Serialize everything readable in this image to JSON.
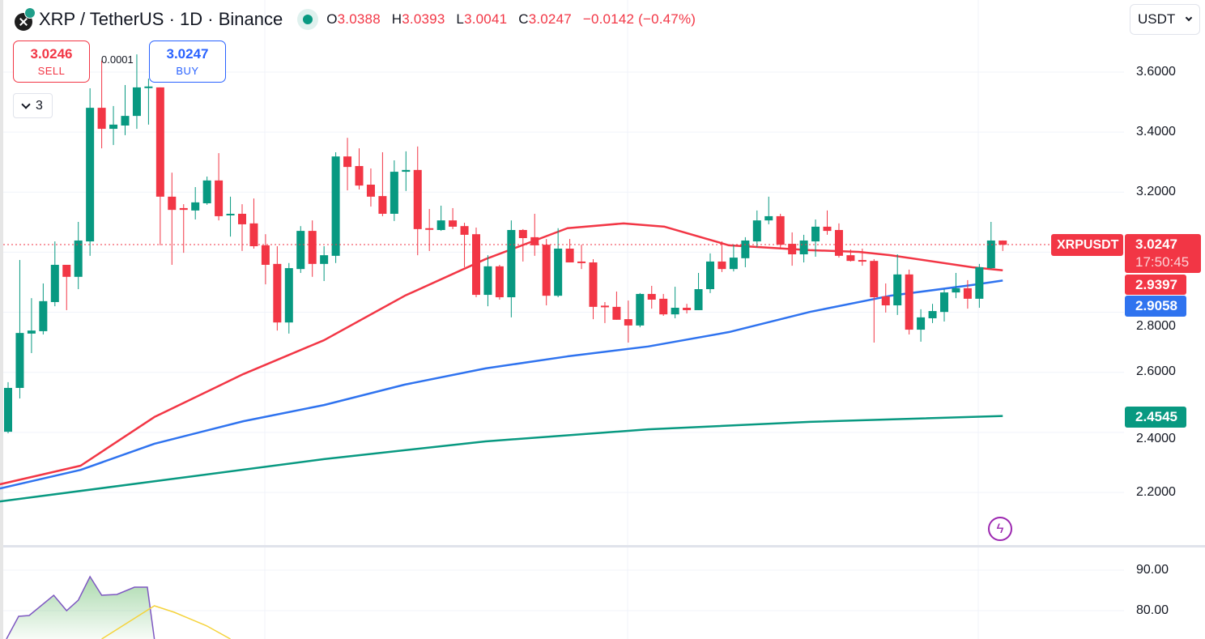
{
  "header": {
    "title": "XRP / TetherUS · 1D · Binance",
    "ohlc": [
      {
        "key": "O",
        "value": "3.0388"
      },
      {
        "key": "H",
        "value": "3.0393"
      },
      {
        "key": "L",
        "value": "3.0041"
      },
      {
        "key": "C",
        "value": "3.0247"
      }
    ],
    "change": "−0.0142 (−0.47%)"
  },
  "trade": {
    "sell_price": "3.0246",
    "sell_label": "SELL",
    "buy_price": "3.0247",
    "buy_label": "BUY",
    "spread": "0.0001"
  },
  "indicators_collapsed_count": "3",
  "currency_select": "USDT",
  "price_axis": {
    "labels": [
      "3.6000",
      "3.4000",
      "3.2000",
      "2.8000",
      "2.6000",
      "2.4000",
      "2.2000"
    ]
  },
  "tags": {
    "symbol": "XRPUSDT",
    "last_price": "3.0247",
    "countdown": "17:50:45",
    "ma_red": "2.9397",
    "ma_blue": "2.9058",
    "ma_green": "2.4545"
  },
  "oscillator_axis": {
    "labels": [
      "90.00",
      "80.00"
    ]
  },
  "colors": {
    "up": "#089981",
    "down": "#f23645",
    "ma_red": "#f23645",
    "ma_blue": "#2f73ef",
    "ma_green": "#089981",
    "osc_line": "#7e57c2",
    "osc_signal": "#f5d33c"
  },
  "chart_data": {
    "type": "candlestick",
    "symbol": "XRPUSDT",
    "interval": "1D",
    "ylim": [
      2.05,
      3.7
    ],
    "yticks": [
      2.2,
      2.4,
      2.6,
      2.8,
      3.0,
      3.2,
      3.4,
      3.6
    ],
    "grid": true,
    "last_price": 3.0247,
    "candles": [
      [
        2.402,
        2.567,
        2.397,
        2.548
      ],
      [
        2.548,
        2.974,
        2.513,
        2.731
      ],
      [
        2.729,
        2.847,
        2.664,
        2.739
      ],
      [
        2.737,
        2.896,
        2.726,
        2.837
      ],
      [
        2.834,
        3.036,
        2.82,
        2.958
      ],
      [
        2.958,
        2.958,
        2.807,
        2.918
      ],
      [
        2.918,
        3.101,
        2.877,
        3.039
      ],
      [
        3.036,
        3.546,
        2.988,
        3.481
      ],
      [
        3.481,
        3.638,
        3.346,
        3.411
      ],
      [
        3.411,
        3.487,
        3.357,
        3.425
      ],
      [
        3.422,
        3.557,
        3.39,
        3.454
      ],
      [
        3.454,
        3.659,
        3.411,
        3.549
      ],
      [
        3.548,
        3.578,
        3.425,
        3.552
      ],
      [
        3.549,
        3.549,
        3.023,
        3.185
      ],
      [
        3.185,
        3.265,
        2.958,
        3.141
      ],
      [
        3.147,
        3.16,
        2.998,
        3.141
      ],
      [
        3.139,
        3.217,
        3.109,
        3.166
      ],
      [
        3.163,
        3.252,
        3.158,
        3.239
      ],
      [
        3.239,
        3.33,
        3.106,
        3.12
      ],
      [
        3.123,
        3.185,
        3.052,
        3.128
      ],
      [
        3.128,
        3.16,
        3.004,
        3.093
      ],
      [
        3.096,
        3.179,
        3.012,
        3.02
      ],
      [
        3.023,
        3.06,
        2.893,
        2.958
      ],
      [
        2.961,
        3.02,
        2.739,
        2.766
      ],
      [
        2.766,
        2.964,
        2.729,
        2.947
      ],
      [
        2.944,
        3.087,
        2.931,
        3.071
      ],
      [
        3.071,
        3.106,
        2.918,
        2.961
      ],
      [
        2.961,
        3.02,
        2.904,
        2.99
      ],
      [
        2.988,
        3.333,
        2.964,
        3.319
      ],
      [
        3.319,
        3.381,
        3.206,
        3.284
      ],
      [
        3.287,
        3.346,
        3.209,
        3.222
      ],
      [
        3.225,
        3.279,
        3.152,
        3.185
      ],
      [
        3.187,
        3.333,
        3.12,
        3.128
      ],
      [
        3.128,
        3.306,
        3.104,
        3.268
      ],
      [
        3.268,
        3.336,
        3.204,
        3.274
      ],
      [
        3.274,
        3.352,
        2.99,
        3.077
      ],
      [
        3.08,
        3.144,
        3.004,
        3.077
      ],
      [
        3.074,
        3.155,
        3.071,
        3.106
      ],
      [
        3.106,
        3.147,
        3.077,
        3.085
      ],
      [
        3.087,
        3.098,
        2.95,
        3.058
      ],
      [
        3.06,
        3.082,
        2.85,
        2.858
      ],
      [
        2.858,
        2.99,
        2.82,
        2.953
      ],
      [
        2.953,
        2.958,
        2.842,
        2.85
      ],
      [
        2.85,
        3.106,
        2.783,
        3.074
      ],
      [
        3.074,
        3.077,
        2.969,
        3.047
      ],
      [
        3.05,
        3.128,
        2.988,
        3.023
      ],
      [
        3.025,
        3.044,
        2.823,
        2.855
      ],
      [
        2.855,
        3.08,
        2.85,
        3.012
      ],
      [
        3.012,
        3.044,
        2.966,
        2.966
      ],
      [
        2.969,
        3.025,
        2.944,
        2.966
      ],
      [
        2.966,
        2.977,
        2.777,
        2.818
      ],
      [
        2.822,
        2.834,
        2.764,
        2.818
      ],
      [
        2.818,
        2.869,
        2.775,
        2.775
      ],
      [
        2.777,
        2.839,
        2.699,
        2.756
      ],
      [
        2.756,
        2.864,
        2.75,
        2.861
      ],
      [
        2.861,
        2.888,
        2.812,
        2.842
      ],
      [
        2.845,
        2.861,
        2.788,
        2.793
      ],
      [
        2.793,
        2.885,
        2.78,
        2.815
      ],
      [
        2.815,
        2.828,
        2.796,
        2.807
      ],
      [
        2.807,
        2.931,
        2.807,
        2.877
      ],
      [
        2.877,
        2.996,
        2.864,
        2.969
      ],
      [
        2.969,
        3.036,
        2.934,
        2.944
      ],
      [
        2.944,
        3.025,
        2.936,
        2.982
      ],
      [
        2.98,
        3.05,
        2.95,
        3.039
      ],
      [
        3.036,
        3.139,
        3.017,
        3.106
      ],
      [
        3.106,
        3.185,
        3.093,
        3.12
      ],
      [
        3.12,
        3.128,
        3.012,
        3.025
      ],
      [
        3.028,
        3.066,
        2.955,
        2.993
      ],
      [
        2.993,
        3.058,
        2.966,
        3.039
      ],
      [
        3.036,
        3.109,
        2.985,
        3.085
      ],
      [
        3.085,
        3.139,
        3.058,
        3.071
      ],
      [
        3.074,
        3.096,
        2.982,
        2.988
      ],
      [
        2.99,
        3.009,
        2.969,
        2.971
      ],
      [
        2.974,
        3.012,
        2.955,
        2.971
      ],
      [
        2.971,
        2.977,
        2.699,
        2.85
      ],
      [
        2.853,
        2.896,
        2.799,
        2.823
      ],
      [
        2.823,
        2.993,
        2.791,
        2.926
      ],
      [
        2.926,
        2.942,
        2.726,
        2.742
      ],
      [
        2.742,
        2.81,
        2.702,
        2.783
      ],
      [
        2.78,
        2.828,
        2.764,
        2.804
      ],
      [
        2.801,
        2.877,
        2.769,
        2.866
      ],
      [
        2.866,
        2.931,
        2.847,
        2.88
      ],
      [
        2.88,
        2.907,
        2.812,
        2.845
      ],
      [
        2.845,
        2.961,
        2.815,
        2.95
      ],
      [
        2.947,
        3.101,
        2.944,
        3.039
      ],
      [
        3.0388,
        3.0393,
        3.0041,
        3.0247
      ]
    ],
    "candle_format": [
      "open",
      "high",
      "low",
      "close"
    ],
    "moving_averages": [
      {
        "name": "MA red",
        "last": 2.9397,
        "points": [
          [
            -0.7,
            2.227
          ],
          [
            6.2,
            2.289
          ],
          [
            12.5,
            2.451
          ],
          [
            20.1,
            2.594
          ],
          [
            27,
            2.707
          ],
          [
            33.9,
            2.855
          ],
          [
            40.8,
            2.977
          ],
          [
            47.8,
            3.08
          ],
          [
            52.6,
            3.096
          ],
          [
            56.1,
            3.085
          ],
          [
            61.6,
            3.023
          ],
          [
            68.5,
            3.007
          ],
          [
            72.7,
            3.001
          ],
          [
            75.4,
            2.99
          ],
          [
            82.4,
            2.95
          ],
          [
            85,
            2.9397
          ]
        ]
      },
      {
        "name": "MA blue",
        "last": 2.9058,
        "points": [
          [
            -0.7,
            2.213
          ],
          [
            6.2,
            2.275
          ],
          [
            12.5,
            2.362
          ],
          [
            20.1,
            2.437
          ],
          [
            27,
            2.491
          ],
          [
            33.9,
            2.559
          ],
          [
            40.8,
            2.613
          ],
          [
            47.8,
            2.653
          ],
          [
            54.7,
            2.686
          ],
          [
            61.6,
            2.734
          ],
          [
            68.5,
            2.801
          ],
          [
            75.4,
            2.855
          ],
          [
            82.4,
            2.891
          ],
          [
            85,
            2.9058
          ]
        ]
      },
      {
        "name": "MA green",
        "last": 2.4545,
        "points": [
          [
            -0.7,
            2.17
          ],
          [
            13.1,
            2.24
          ],
          [
            27,
            2.311
          ],
          [
            40.8,
            2.37
          ],
          [
            54.7,
            2.41
          ],
          [
            68.5,
            2.435
          ],
          [
            85,
            2.4545
          ]
        ]
      }
    ],
    "oscillator": {
      "ylim": [
        73,
        95
      ],
      "yticks": [
        80,
        90
      ],
      "line": [
        [
          -0.14,
          73
        ],
        [
          0.9,
          78.6
        ],
        [
          1.8,
          78.8
        ],
        [
          3.9,
          83.8
        ],
        [
          5.0,
          80
        ],
        [
          6.0,
          82.6
        ],
        [
          7.0,
          88.4
        ],
        [
          8.0,
          83.8
        ],
        [
          9.3,
          84
        ],
        [
          10.8,
          85.8
        ],
        [
          11.9,
          85.8
        ],
        [
          12.5,
          73
        ]
      ],
      "signal": [
        [
          8.0,
          73
        ],
        [
          12.5,
          81.2
        ],
        [
          14.2,
          79.6
        ],
        [
          17.0,
          76.2
        ],
        [
          19.0,
          73
        ]
      ]
    }
  }
}
